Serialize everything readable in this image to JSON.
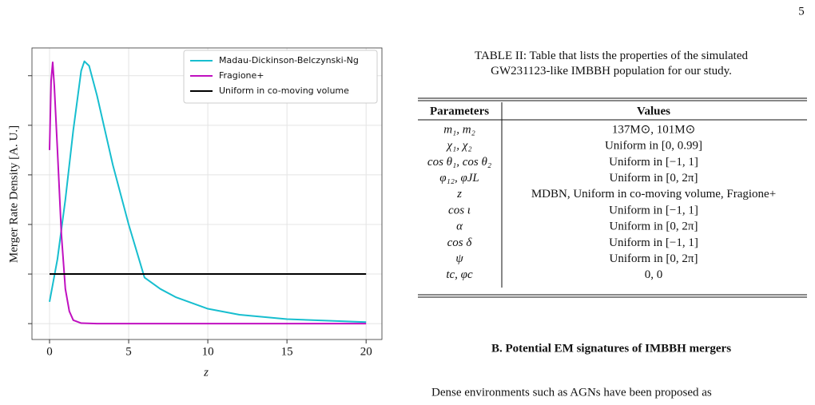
{
  "page_number": "5",
  "chart_data": {
    "type": "line",
    "xlabel": "z",
    "ylabel": "Merger Rate Density [A. U.]",
    "xlim": [
      -1.11,
      21.0
    ],
    "ylim": [
      -0.32,
      5.56
    ],
    "xticks": [
      0,
      5,
      10,
      15,
      20
    ],
    "yticks": [
      0,
      1,
      2,
      3,
      4,
      5
    ],
    "ytick_labels": false,
    "grid": true,
    "legend": "upper right",
    "series": [
      {
        "name": "Madau-Dickinson-Belczynski-Ng",
        "color": "#17becf",
        "x": [
          0,
          0.5,
          1,
          1.5,
          2,
          2.2,
          2.5,
          3,
          3.5,
          4,
          5,
          6,
          7,
          8,
          10,
          12,
          15,
          20
        ],
        "values": [
          0.44,
          1.3,
          2.5,
          3.9,
          5.1,
          5.29,
          5.2,
          4.6,
          3.9,
          3.2,
          2.0,
          0.93,
          0.7,
          0.53,
          0.3,
          0.18,
          0.09,
          0.03
        ]
      },
      {
        "name": "Fragione+",
        "color": "#c010c0",
        "x": [
          0,
          0.1,
          0.2,
          0.3,
          0.5,
          0.75,
          1,
          1.25,
          1.5,
          2,
          3,
          20
        ],
        "values": [
          3.5,
          4.9,
          5.27,
          4.8,
          3.5,
          1.8,
          0.7,
          0.25,
          0.07,
          0.01,
          0,
          0
        ]
      },
      {
        "name": "Uniform in co-moving volume",
        "color": "#000000",
        "x": [
          0,
          20
        ],
        "values": [
          1,
          1
        ]
      }
    ]
  },
  "table": {
    "caption": "TABLE II: Table that lists the properties of the simulated GW231123-like IMBBH population for our study.",
    "header": [
      "Parameters",
      "Values"
    ],
    "rows": [
      [
        "m₁, m₂",
        "137M⊙, 101M⊙"
      ],
      [
        "χ₁, χ₂",
        "Uniform in [0, 0.99]"
      ],
      [
        "cos θ₁, cos θ₂",
        "Uniform in [−1, 1]"
      ],
      [
        "φ₁₂, φJL",
        "Uniform in [0, 2π]"
      ],
      [
        "z",
        "MDBN, Uniform in co-moving volume, Fragione+"
      ],
      [
        "cos ι",
        "Uniform in [−1, 1]"
      ],
      [
        "α",
        "Uniform in [0, 2π]"
      ],
      [
        "cos δ",
        "Uniform in [−1, 1]"
      ],
      [
        "ψ",
        "Uniform in [0, 2π]"
      ],
      [
        "tc, φc",
        "0, 0"
      ]
    ]
  },
  "section_heading": "B.   Potential EM signatures of IMBBH mergers",
  "paragraph": "Dense environments such as AGNs have been proposed as"
}
